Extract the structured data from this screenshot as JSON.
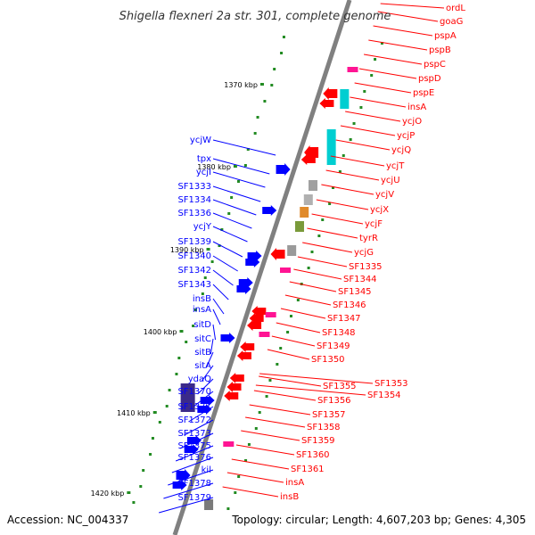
{
  "title": "Shigella flexneri 2a str. 301, complete genome",
  "footer": {
    "accession": "Accession: NC_004337",
    "summary": "Topology: circular; Length: 4,607,203 bp; Genes: 4,305"
  },
  "colors": {
    "backbone": "#808080",
    "forward_genes": "#0000ff",
    "reverse_genes": "#ff0000",
    "kbp_marker": "#228b22",
    "rna_feature": "#ff1493",
    "orf_feature": "#00ced1"
  },
  "ticks": [
    "1370 kbp",
    "1380 kbp",
    "1390 kbp",
    "1400 kbp",
    "1410 kbp",
    "1420 kbp"
  ],
  "left_labels": [
    "ycjW",
    "tpx",
    "ycjI",
    "SF1333",
    "SF1334",
    "SF1336",
    "ycjY",
    "SF1339",
    "SF1340",
    "SF1342",
    "SF1343",
    "insB",
    "insA",
    "sitD",
    "sitC",
    "sitB",
    "sitA",
    "ydaQ",
    "SF1370",
    "SF1371",
    "SF1372",
    "SF1373",
    "SF1375",
    "SF1376",
    "kil",
    "SF1378",
    "SF1379"
  ],
  "right_labels": [
    "ordL",
    "goaG",
    "pspA",
    "pspB",
    "pspC",
    "pspD",
    "pspE",
    "insA",
    "ycjO",
    "ycjP",
    "ycjQ",
    "ycjT",
    "ycjU",
    "ycjV",
    "ycjX",
    "ycjF",
    "tyrR",
    "ycjG",
    "SF1335",
    "SF1344",
    "SF1345",
    "SF1346",
    "SF1347",
    "SF1348",
    "SF1349",
    "SF1350",
    "SF1353",
    "SF1355",
    "SF1354",
    "SF1356",
    "SF1357",
    "SF1358",
    "SF1359",
    "SF1360",
    "SF1361",
    "insA",
    "insB"
  ]
}
